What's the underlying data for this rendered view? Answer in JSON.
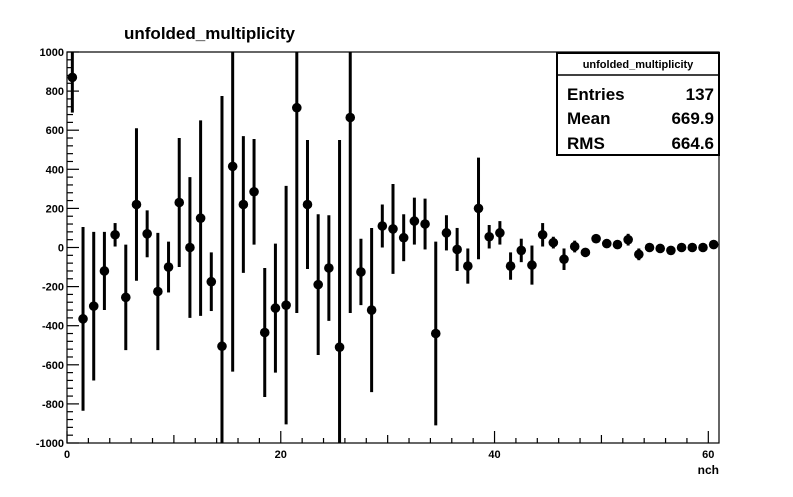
{
  "chart_data": {
    "type": "scatter",
    "title": "unfolded_multiplicity",
    "xlabel": "nch",
    "ylabel": "",
    "xlim": [
      0,
      61
    ],
    "ylim": [
      -1000,
      1000
    ],
    "x_ticks": [
      0,
      20,
      40,
      60
    ],
    "y_ticks": [
      -1000,
      -800,
      -600,
      -400,
      -200,
      0,
      200,
      400,
      600,
      800,
      1000
    ],
    "grid": false,
    "legend": "none",
    "stats_box": {
      "name": "unfolded_multiplicity",
      "rows": [
        {
          "label": "Entries",
          "value": "137"
        },
        {
          "label": "Mean",
          "value": "669.9"
        },
        {
          "label": "RMS",
          "value": "664.6"
        }
      ]
    },
    "series": [
      {
        "points": [
          {
            "x": 0.5,
            "y": 870,
            "err": 180
          },
          {
            "x": 1.5,
            "y": -365,
            "err": 470
          },
          {
            "x": 2.5,
            "y": -300,
            "err": 380
          },
          {
            "x": 3.5,
            "y": -120,
            "err": 200
          },
          {
            "x": 4.5,
            "y": 65,
            "err": 60
          },
          {
            "x": 5.5,
            "y": -255,
            "err": 270
          },
          {
            "x": 6.5,
            "y": 220,
            "err": 390
          },
          {
            "x": 7.5,
            "y": 70,
            "err": 120
          },
          {
            "x": 8.5,
            "y": -225,
            "err": 300
          },
          {
            "x": 9.5,
            "y": -100,
            "err": 130
          },
          {
            "x": 10.5,
            "y": 230,
            "err": 330
          },
          {
            "x": 11.5,
            "y": 0,
            "err": 360
          },
          {
            "x": 12.5,
            "y": 150,
            "err": 500
          },
          {
            "x": 13.5,
            "y": -175,
            "err": 150
          },
          {
            "x": 14.5,
            "y": -505,
            "err": 1280
          },
          {
            "x": 15.5,
            "y": 415,
            "err": 1050
          },
          {
            "x": 16.5,
            "y": 220,
            "err": 350
          },
          {
            "x": 17.5,
            "y": 285,
            "err": 270
          },
          {
            "x": 18.5,
            "y": -435,
            "err": 330
          },
          {
            "x": 19.5,
            "y": -310,
            "err": 330
          },
          {
            "x": 20.5,
            "y": -295,
            "err": 610
          },
          {
            "x": 21.5,
            "y": 715,
            "err": 1050
          },
          {
            "x": 22.5,
            "y": 220,
            "err": 330
          },
          {
            "x": 23.5,
            "y": -190,
            "err": 360
          },
          {
            "x": 24.5,
            "y": -105,
            "err": 270
          },
          {
            "x": 25.5,
            "y": -510,
            "err": 1060
          },
          {
            "x": 26.5,
            "y": 665,
            "err": 1000
          },
          {
            "x": 27.5,
            "y": -125,
            "err": 170
          },
          {
            "x": 28.5,
            "y": -320,
            "err": 420
          },
          {
            "x": 29.5,
            "y": 110,
            "err": 110
          },
          {
            "x": 30.5,
            "y": 95,
            "err": 230
          },
          {
            "x": 31.5,
            "y": 50,
            "err": 120
          },
          {
            "x": 32.5,
            "y": 135,
            "err": 120
          },
          {
            "x": 33.5,
            "y": 120,
            "err": 130
          },
          {
            "x": 34.5,
            "y": -440,
            "err": 470
          },
          {
            "x": 35.5,
            "y": 75,
            "err": 90
          },
          {
            "x": 36.5,
            "y": -10,
            "err": 110
          },
          {
            "x": 37.5,
            "y": -95,
            "err": 90
          },
          {
            "x": 38.5,
            "y": 200,
            "err": 260
          },
          {
            "x": 39.5,
            "y": 55,
            "err": 60
          },
          {
            "x": 40.5,
            "y": 75,
            "err": 60
          },
          {
            "x": 41.5,
            "y": -95,
            "err": 70
          },
          {
            "x": 42.5,
            "y": -15,
            "err": 60
          },
          {
            "x": 43.5,
            "y": -90,
            "err": 100
          },
          {
            "x": 44.5,
            "y": 65,
            "err": 60
          },
          {
            "x": 45.5,
            "y": 25,
            "err": 30
          },
          {
            "x": 46.5,
            "y": -60,
            "err": 55
          },
          {
            "x": 47.5,
            "y": 5,
            "err": 30
          },
          {
            "x": 48.5,
            "y": -25,
            "err": 20
          },
          {
            "x": 49.5,
            "y": 45,
            "err": 20
          },
          {
            "x": 50.5,
            "y": 20,
            "err": 20
          },
          {
            "x": 51.5,
            "y": 15,
            "err": 20
          },
          {
            "x": 52.5,
            "y": 40,
            "err": 30
          },
          {
            "x": 53.5,
            "y": -35,
            "err": 30
          },
          {
            "x": 54.5,
            "y": 0,
            "err": 20
          },
          {
            "x": 55.5,
            "y": -5,
            "err": 20
          },
          {
            "x": 56.5,
            "y": -15,
            "err": 15
          },
          {
            "x": 57.5,
            "y": 0,
            "err": 15
          },
          {
            "x": 58.5,
            "y": 0,
            "err": 15
          },
          {
            "x": 59.5,
            "y": 0,
            "err": 15
          },
          {
            "x": 60.5,
            "y": 15,
            "err": 15
          }
        ]
      }
    ]
  }
}
